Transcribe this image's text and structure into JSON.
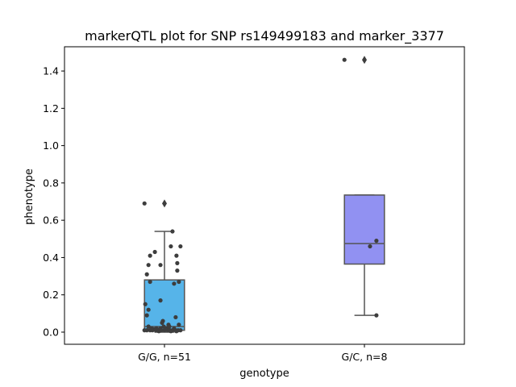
{
  "chart_data": {
    "type": "box",
    "title": "markerQTL plot for SNP rs149499183 and marker_3377",
    "xlabel": "genotype",
    "ylabel": "phenotype",
    "ylim": [
      -0.065,
      1.53
    ],
    "yticks": [
      0.0,
      0.2,
      0.4,
      0.6,
      0.8,
      1.0,
      1.2,
      1.4
    ],
    "ytick_labels": [
      "0.0",
      "0.2",
      "0.4",
      "0.6",
      "0.8",
      "1.0",
      "1.2",
      "1.4"
    ],
    "grid": false,
    "categories": [
      "G/G, n=51",
      "G/C, n=8"
    ],
    "boxes": [
      {
        "category": "G/G, n=51",
        "color": "#56B4E9",
        "q1": 0.01,
        "median": 0.03,
        "q3": 0.28,
        "whisker_low": 0.0,
        "whisker_high": 0.54,
        "outliers": [
          0.69
        ],
        "points": [
          {
            "x": -0.25,
            "y": 0.69
          },
          {
            "x": 0.1,
            "y": 0.54
          },
          {
            "x": 0.08,
            "y": 0.46
          },
          {
            "x": 0.2,
            "y": 0.46
          },
          {
            "x": -0.12,
            "y": 0.43
          },
          {
            "x": -0.18,
            "y": 0.41
          },
          {
            "x": 0.15,
            "y": 0.41
          },
          {
            "x": -0.2,
            "y": 0.36
          },
          {
            "x": -0.05,
            "y": 0.36
          },
          {
            "x": 0.16,
            "y": 0.37
          },
          {
            "x": -0.22,
            "y": 0.31
          },
          {
            "x": 0.16,
            "y": 0.33
          },
          {
            "x": -0.18,
            "y": 0.27
          },
          {
            "x": 0.12,
            "y": 0.26
          },
          {
            "x": 0.18,
            "y": 0.27
          },
          {
            "x": -0.05,
            "y": 0.17
          },
          {
            "x": -0.24,
            "y": 0.15
          },
          {
            "x": -0.2,
            "y": 0.12
          },
          {
            "x": -0.22,
            "y": 0.09
          },
          {
            "x": 0.14,
            "y": 0.08
          },
          {
            "x": -0.02,
            "y": 0.06
          },
          {
            "x": -0.03,
            "y": 0.05
          },
          {
            "x": -0.2,
            "y": 0.03
          },
          {
            "x": 0.05,
            "y": 0.04
          },
          {
            "x": 0.18,
            "y": 0.04
          },
          {
            "x": -0.1,
            "y": 0.02
          },
          {
            "x": -0.05,
            "y": 0.02
          },
          {
            "x": 0.03,
            "y": 0.02
          },
          {
            "x": 0.12,
            "y": 0.02
          },
          {
            "x": -0.25,
            "y": 0.01
          },
          {
            "x": -0.22,
            "y": 0.01
          },
          {
            "x": -0.18,
            "y": 0.01
          },
          {
            "x": -0.15,
            "y": 0.01
          },
          {
            "x": -0.11,
            "y": 0.01
          },
          {
            "x": -0.08,
            "y": 0.01
          },
          {
            "x": -0.04,
            "y": 0.01
          },
          {
            "x": 0.0,
            "y": 0.01
          },
          {
            "x": 0.04,
            "y": 0.01
          },
          {
            "x": 0.07,
            "y": 0.01
          },
          {
            "x": 0.1,
            "y": 0.01
          },
          {
            "x": 0.14,
            "y": 0.01
          },
          {
            "x": 0.17,
            "y": 0.01
          },
          {
            "x": 0.2,
            "y": 0.01
          },
          {
            "x": -0.13,
            "y": 0.015
          },
          {
            "x": 0.01,
            "y": 0.015
          },
          {
            "x": 0.08,
            "y": 0.005
          },
          {
            "x": 0.15,
            "y": 0.005
          },
          {
            "x": -0.01,
            "y": 0.03
          },
          {
            "x": -0.16,
            "y": 0.02
          },
          {
            "x": 0.06,
            "y": 0.03
          },
          {
            "x": -0.07,
            "y": 0.005
          }
        ]
      },
      {
        "category": "G/C, n=8",
        "color": "#9191F2",
        "q1": 0.365,
        "median": 0.475,
        "q3": 0.735,
        "whisker_low": 0.09,
        "whisker_high": 0.735,
        "outliers": [
          1.46
        ],
        "points": [
          {
            "x": -0.25,
            "y": 1.46
          },
          {
            "x": 0.15,
            "y": 0.49
          },
          {
            "x": 0.07,
            "y": 0.46
          },
          {
            "x": 0.15,
            "y": 0.09
          }
        ]
      }
    ]
  }
}
